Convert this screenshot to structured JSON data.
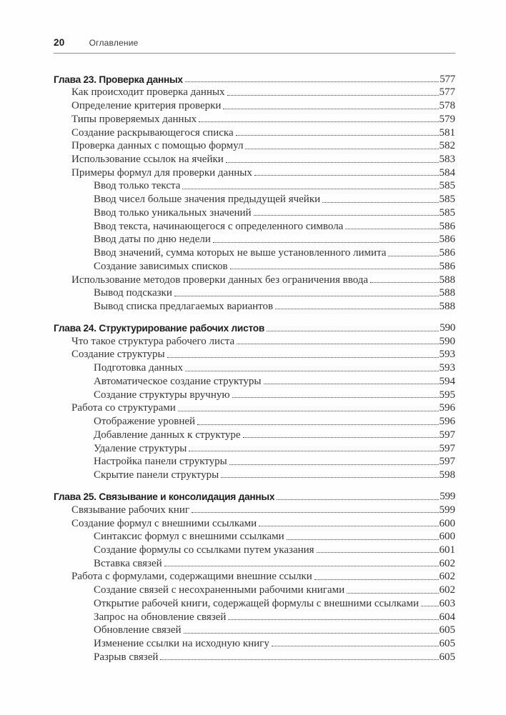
{
  "page_header": {
    "page_number": "20",
    "title": "Оглавление"
  },
  "toc": {
    "chapters": [
      {
        "label": "Глава 23. Проверка данных",
        "page": "577",
        "entries": [
          {
            "indent": 1,
            "label": "Как происходит проверка данных",
            "page": "577"
          },
          {
            "indent": 1,
            "label": "Определение критерия проверки",
            "page": "578"
          },
          {
            "indent": 1,
            "label": "Типы проверяемых данных",
            "page": "579"
          },
          {
            "indent": 1,
            "label": "Создание раскрывающегося списка",
            "page": "581"
          },
          {
            "indent": 1,
            "label": "Проверка данных с помощью формул",
            "page": "582"
          },
          {
            "indent": 1,
            "label": "Использование ссылок на ячейки",
            "page": "583"
          },
          {
            "indent": 1,
            "label": "Примеры формул для проверки данных",
            "page": "584"
          },
          {
            "indent": 2,
            "label": "Ввод только текста",
            "page": "585"
          },
          {
            "indent": 2,
            "label": "Ввод чисел больше значения предыдущей ячейки",
            "page": "585"
          },
          {
            "indent": 2,
            "label": "Ввод только уникальных значений",
            "page": "585"
          },
          {
            "indent": 2,
            "label": "Ввод текста, начинающегося с определенного символа",
            "page": "586"
          },
          {
            "indent": 2,
            "label": "Ввод даты по дню недели",
            "page": "586"
          },
          {
            "indent": 2,
            "label": "Ввод значений, сумма которых не выше установленного лимита",
            "page": "586"
          },
          {
            "indent": 2,
            "label": "Создание зависимых списков",
            "page": "586"
          },
          {
            "indent": 1,
            "label": "Использование методов проверки данных без ограничения ввода",
            "page": "588"
          },
          {
            "indent": 2,
            "label": "Вывод подсказки",
            "page": "588"
          },
          {
            "indent": 2,
            "label": "Вывод списка предлагаемых вариантов",
            "page": "588"
          }
        ]
      },
      {
        "label": "Глава 24. Структурирование рабочих листов",
        "page": "590",
        "entries": [
          {
            "indent": 1,
            "label": "Что такое структура рабочего листа",
            "page": "590"
          },
          {
            "indent": 1,
            "label": "Создание структуры",
            "page": "593"
          },
          {
            "indent": 2,
            "label": "Подготовка данных",
            "page": "593"
          },
          {
            "indent": 2,
            "label": "Автоматическое создание структуры",
            "page": "594"
          },
          {
            "indent": 2,
            "label": "Создание структуры вручную",
            "page": "595"
          },
          {
            "indent": 1,
            "label": "Работа со структурами",
            "page": "596"
          },
          {
            "indent": 2,
            "label": "Отображение уровней",
            "page": "596"
          },
          {
            "indent": 2,
            "label": "Добавление данных к структуре",
            "page": "597"
          },
          {
            "indent": 2,
            "label": "Удаление структуры",
            "page": "597"
          },
          {
            "indent": 2,
            "label": "Настройка панели структуры",
            "page": "597"
          },
          {
            "indent": 2,
            "label": "Скрытие панели структуры",
            "page": "598"
          }
        ]
      },
      {
        "label": "Глава 25. Связывание и консолидация данных",
        "page": "599",
        "entries": [
          {
            "indent": 1,
            "label": "Связывание рабочих книг",
            "page": "599"
          },
          {
            "indent": 1,
            "label": "Создание формул с внешними ссылками",
            "page": "600"
          },
          {
            "indent": 2,
            "label": "Синтаксис формул с внешними ссылками",
            "page": "600"
          },
          {
            "indent": 2,
            "label": "Создание формулы со ссылками путем указания",
            "page": "601"
          },
          {
            "indent": 2,
            "label": "Вставка связей",
            "page": "602"
          },
          {
            "indent": 1,
            "label": "Работа с формулами, содержащими внешние ссылки",
            "page": "602"
          },
          {
            "indent": 2,
            "label": "Создание связей с несохраненными рабочими книгами",
            "page": "602"
          },
          {
            "indent": 2,
            "label": "Открытие рабочей книги, содержащей формулы с внешними ссылками",
            "page": "603"
          },
          {
            "indent": 2,
            "label": "Запрос на обновление связей",
            "page": "604"
          },
          {
            "indent": 2,
            "label": "Обновление связей",
            "page": "605"
          },
          {
            "indent": 2,
            "label": "Изменение ссылки на исходную книгу",
            "page": "605"
          },
          {
            "indent": 2,
            "label": "Разрыв связей",
            "page": "605"
          }
        ]
      }
    ]
  }
}
